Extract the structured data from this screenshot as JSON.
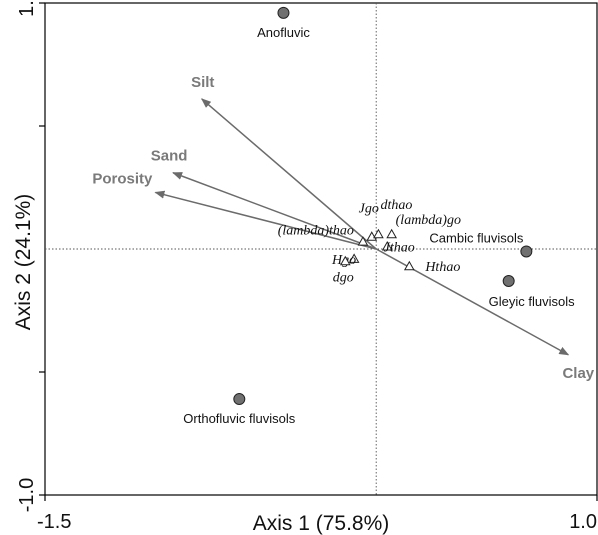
{
  "chart_data": {
    "type": "scatter",
    "subtype": "ordination-biplot",
    "xlabel": "Axis 1 (75.8%)",
    "ylabel": "Axis 2 (24.1%)",
    "xlim": [
      -1.5,
      1.0
    ],
    "ylim": [
      -1.0,
      1.0
    ],
    "x_tick_labels": [
      {
        "value": -1.5,
        "label": "-1.5"
      },
      {
        "value": 1.0,
        "label": "1.0"
      }
    ],
    "y_tick_labels": [
      {
        "value": 1.0,
        "label": "1.0"
      },
      {
        "value": -1.0,
        "label": "-1.0"
      }
    ],
    "y_minor_ticks": [
      0.5,
      -0.5
    ],
    "reference_lines": {
      "x": 0,
      "y": 0,
      "style": "dotted"
    },
    "grid": false,
    "environmental_vectors": [
      {
        "name": "Silt",
        "x": -0.79,
        "y": 0.61
      },
      {
        "name": "Sand",
        "x": -0.92,
        "y": 0.31
      },
      {
        "name": "Porosity",
        "x": -1.0,
        "y": 0.23
      },
      {
        "name": "Clay",
        "x": 0.87,
        "y": -0.43
      }
    ],
    "site_points": [
      {
        "name": "Anofluvic",
        "x": -0.42,
        "y": 0.96
      },
      {
        "name": "Cambic fluvisols",
        "x": 0.68,
        "y": -0.01
      },
      {
        "name": "Gleyic fluvisols",
        "x": 0.6,
        "y": -0.13
      },
      {
        "name": "Orthofluvic fluvisols",
        "x": -0.62,
        "y": -0.61
      }
    ],
    "species_points": [
      {
        "name": "(lambda)thao",
        "x": -0.06,
        "y": 0.03
      },
      {
        "name": "Jgo",
        "x": -0.02,
        "y": 0.05
      },
      {
        "name": "dthao",
        "x": 0.01,
        "y": 0.06
      },
      {
        "name": "(lambda)go",
        "x": 0.07,
        "y": 0.06
      },
      {
        "name": "Hgo",
        "x": -0.1,
        "y": -0.04
      },
      {
        "name": "dgo",
        "x": -0.14,
        "y": -0.05
      },
      {
        "name": "Jthao",
        "x": 0.05,
        "y": 0.01
      },
      {
        "name": "Hthao",
        "x": 0.15,
        "y": -0.07
      }
    ],
    "colors": {
      "vector": "#6b6b6b",
      "vector_label": "#7a7a7a",
      "site_fill": "#707070",
      "axis": "#000000"
    }
  }
}
